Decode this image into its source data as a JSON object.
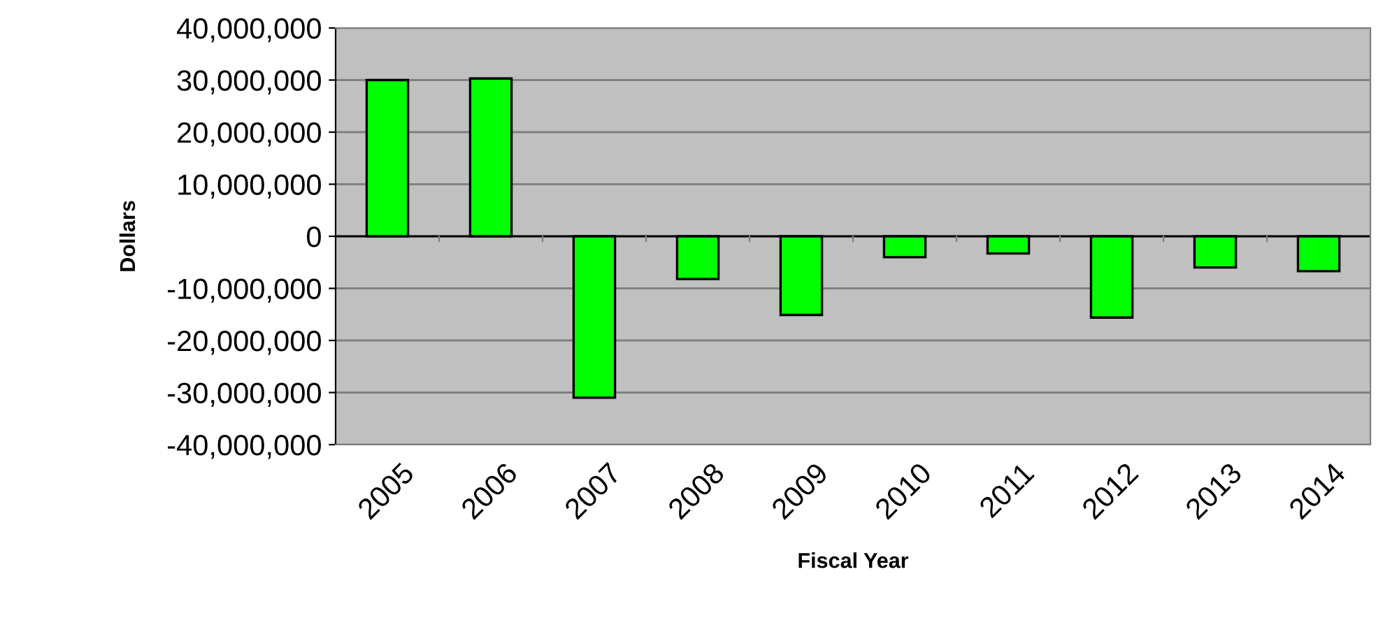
{
  "chart_data": {
    "type": "bar",
    "xlabel": "Fiscal Year",
    "ylabel": "Dollars",
    "categories": [
      "2005",
      "2006",
      "2007",
      "2008",
      "2009",
      "2010",
      "2011",
      "2012",
      "2013",
      "2014"
    ],
    "values": [
      30000000,
      30300000,
      -31000000,
      -8200000,
      -15100000,
      -4000000,
      -3300000,
      -15600000,
      -6000000,
      -6700000
    ],
    "color": "#00ff00",
    "ylim": [
      -40000000,
      40000000
    ],
    "yticks": [
      {
        "value": -40000000,
        "label": "-40,000,000"
      },
      {
        "value": -30000000,
        "label": "-30,000,000"
      },
      {
        "value": -20000000,
        "label": "-20,000,000"
      },
      {
        "value": -10000000,
        "label": "-10,000,000"
      },
      0,
      {
        "value": 10000000,
        "label": "10,000,000"
      },
      {
        "value": 20000000,
        "label": "20,000,000"
      },
      {
        "value": 30000000,
        "label": "30,000,000"
      },
      {
        "value": 40000000,
        "label": "40,000,000"
      }
    ],
    "grid": "y",
    "legend": false
  }
}
